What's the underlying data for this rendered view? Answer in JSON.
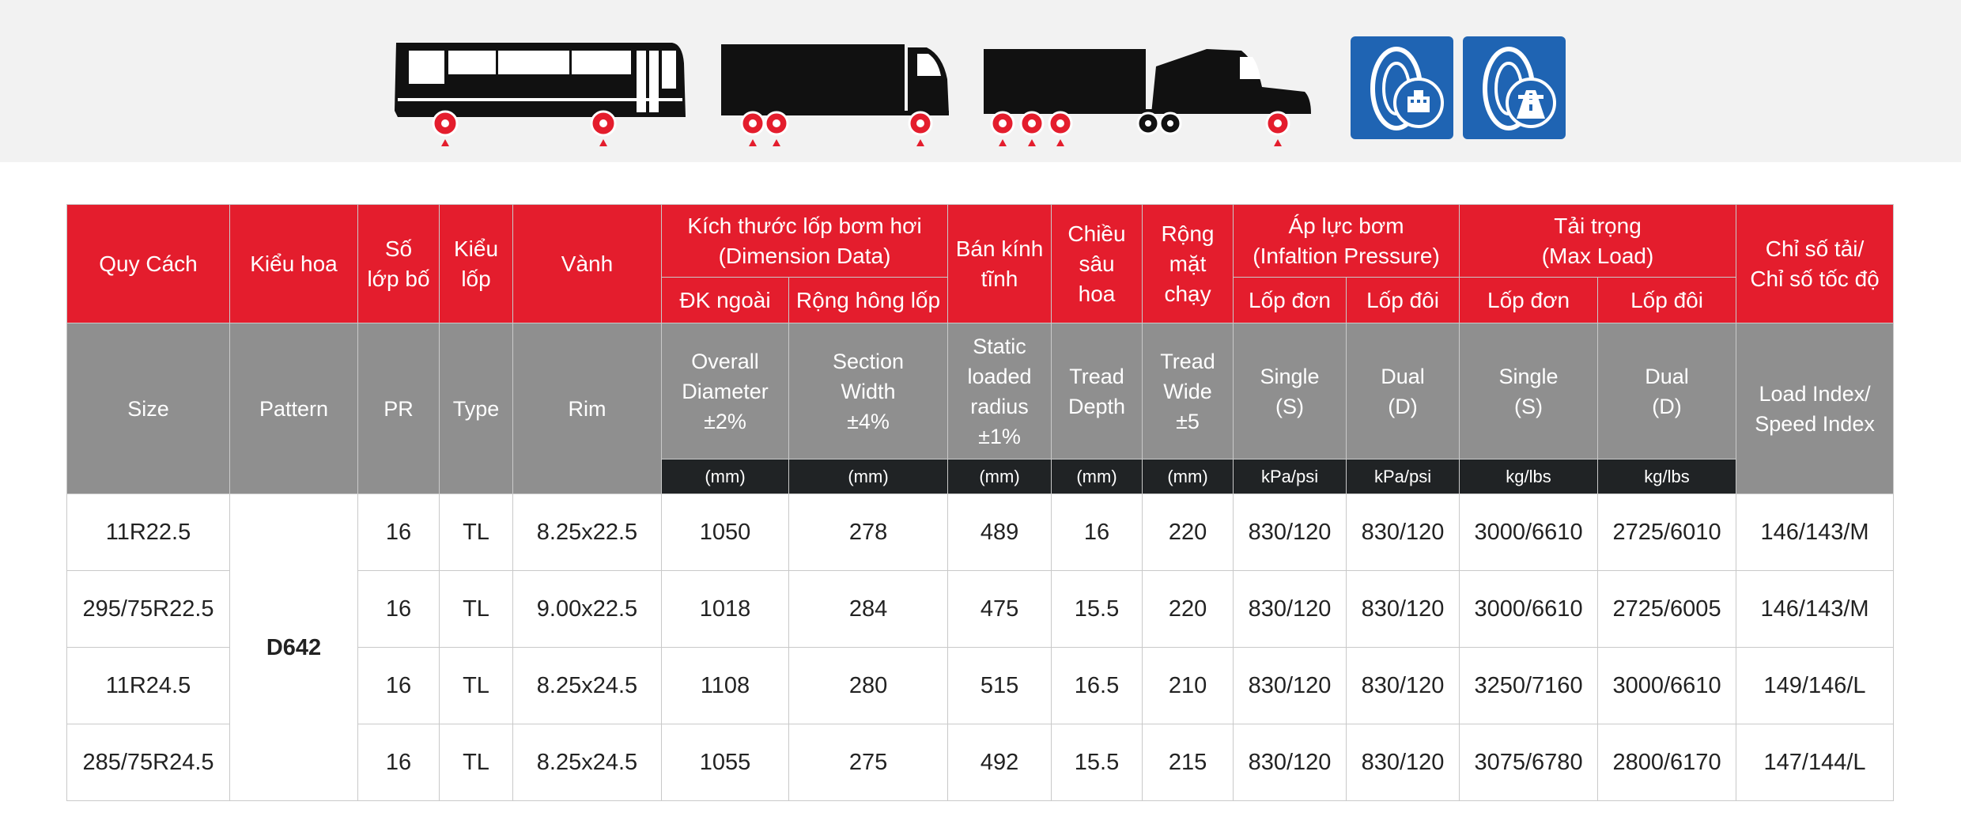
{
  "colors": {
    "brand_red": "#e41d2d",
    "header_grey": "#8f8f8f",
    "unit_dark": "#202325",
    "icon_blue": "#1f64b3",
    "marker_red": "#e41d2d"
  },
  "icons": {
    "vehicles": [
      "bus-icon",
      "rigid-truck-icon",
      "semi-trailer-truck-icon"
    ],
    "usage": [
      "urban-road-tire-icon",
      "highway-tire-icon"
    ]
  },
  "table": {
    "vn_headers": {
      "size": "Quy Cách",
      "pattern": "Kiểu hoa",
      "pr_l1": "Số",
      "pr_l2": "lớp bố",
      "type_l1": "Kiểu",
      "type_l2": "lốp",
      "rim": "Vành",
      "dimension_l1": "Kích thước lốp bơm hơi",
      "dimension_l2": "(Dimension Data)",
      "dim_od": "ĐK ngoài",
      "dim_sw": "Rộng hông lốp",
      "radius_l1": "Bán kính",
      "radius_l2": "tĩnh",
      "depth_l1": "Chiều",
      "depth_l2": "sâu",
      "depth_l3": "hoa",
      "tread_l1": "Rộng",
      "tread_l2": "mặt",
      "tread_l3": "chạy",
      "pressure_l1": "Áp lực bơm",
      "pressure_l2": "(Infaltion Pressure)",
      "p_single": "Lốp đơn",
      "p_dual": "Lốp đôi",
      "load_l1": "Tải trọng",
      "load_l2": "(Max Load)",
      "l_single": "Lốp đơn",
      "l_dual": "Lốp đôi",
      "index_l1": "Chỉ số tải/",
      "index_l2": "Chỉ số tốc độ"
    },
    "en_headers": {
      "size": "Size",
      "pattern": "Pattern",
      "pr": "PR",
      "type": "Type",
      "rim": "Rim",
      "od_l1": "Overall",
      "od_l2": "Diameter",
      "od_l3": "±2%",
      "sw_l1": "Section",
      "sw_l2": "Width",
      "sw_l3": "±4%",
      "slr_l1": "Static",
      "slr_l2": "loaded",
      "slr_l3": "radius",
      "slr_l4": "±1%",
      "td_l1": "Tread",
      "td_l2": "Depth",
      "tw_l1": "Tread",
      "tw_l2": "Wide",
      "tw_l3": "±5",
      "ps_l1": "Single",
      "ps_l2": "(S)",
      "pd_l1": "Dual",
      "pd_l2": "(D)",
      "ls_l1": "Single",
      "ls_l2": "(S)",
      "ld_l1": "Dual",
      "ld_l2": "(D)",
      "index_l1": "Load Index/",
      "index_l2": "Speed Index"
    },
    "units": [
      "(mm)",
      "(mm)",
      "(mm)",
      "(mm)",
      "(mm)",
      "kPa/psi",
      "kPa/psi",
      "kg/lbs",
      "kg/lbs"
    ],
    "pattern": "D642",
    "rows": [
      {
        "size": "11R22.5",
        "pr": "16",
        "type": "TL",
        "rim": "8.25x22.5",
        "od": "1050",
        "sw": "278",
        "slr": "489",
        "depth": "16",
        "tread": "220",
        "p_single": "830/120",
        "p_dual": "830/120",
        "l_single": "3000/6610",
        "l_dual": "2725/6010",
        "index": "146/143/M"
      },
      {
        "size": "295/75R22.5",
        "pr": "16",
        "type": "TL",
        "rim": "9.00x22.5",
        "od": "1018",
        "sw": "284",
        "slr": "475",
        "depth": "15.5",
        "tread": "220",
        "p_single": "830/120",
        "p_dual": "830/120",
        "l_single": "3000/6610",
        "l_dual": "2725/6005",
        "index": "146/143/M"
      },
      {
        "size": "11R24.5",
        "pr": "16",
        "type": "TL",
        "rim": "8.25x24.5",
        "od": "1108",
        "sw": "280",
        "slr": "515",
        "depth": "16.5",
        "tread": "210",
        "p_single": "830/120",
        "p_dual": "830/120",
        "l_single": "3250/7160",
        "l_dual": "3000/6610",
        "index": "149/146/L"
      },
      {
        "size": "285/75R24.5",
        "pr": "16",
        "type": "TL",
        "rim": "8.25x24.5",
        "od": "1055",
        "sw": "275",
        "slr": "492",
        "depth": "15.5",
        "tread": "215",
        "p_single": "830/120",
        "p_dual": "830/120",
        "l_single": "3075/6780",
        "l_dual": "2800/6170",
        "index": "147/144/L"
      }
    ]
  }
}
